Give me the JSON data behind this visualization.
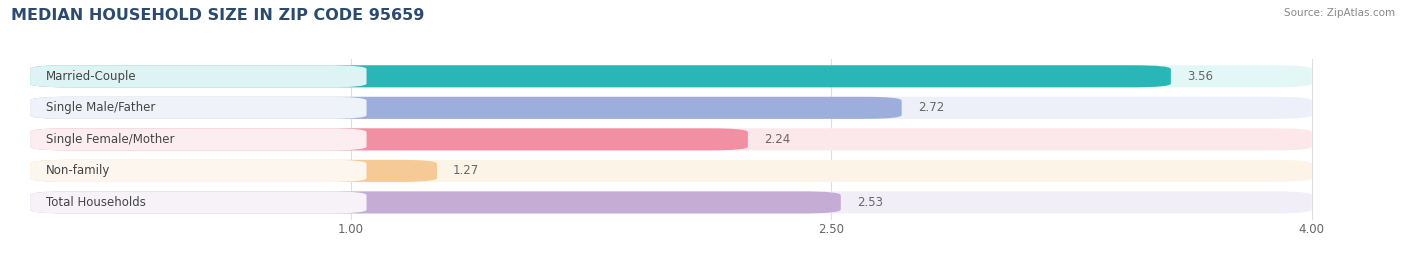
{
  "title": "MEDIAN HOUSEHOLD SIZE IN ZIP CODE 95659",
  "source_text": "Source: ZipAtlas.com",
  "categories": [
    "Married-Couple",
    "Single Male/Father",
    "Single Female/Mother",
    "Non-family",
    "Total Households"
  ],
  "values": [
    3.56,
    2.72,
    2.24,
    1.27,
    2.53
  ],
  "bar_colors": [
    "#29b6b6",
    "#9daedd",
    "#f090a2",
    "#f5ca96",
    "#c4acd4"
  ],
  "bar_bg_colors": [
    "#e4f7f7",
    "#edf0f8",
    "#fce8eb",
    "#fdf4e8",
    "#f2eef8"
  ],
  "xmin": 0.0,
  "xmax": 4.0,
  "xlim_left": -0.05,
  "xlim_right": 4.25,
  "xticks": [
    1.0,
    2.5,
    4.0
  ],
  "xtick_labels": [
    "1.00",
    "2.50",
    "4.00"
  ],
  "title_fontsize": 11.5,
  "label_fontsize": 8.5,
  "value_fontsize": 8.5,
  "background_color": "#ffffff",
  "grid_color": "#dddddd",
  "bar_height": 0.7,
  "bar_gap": 0.3
}
